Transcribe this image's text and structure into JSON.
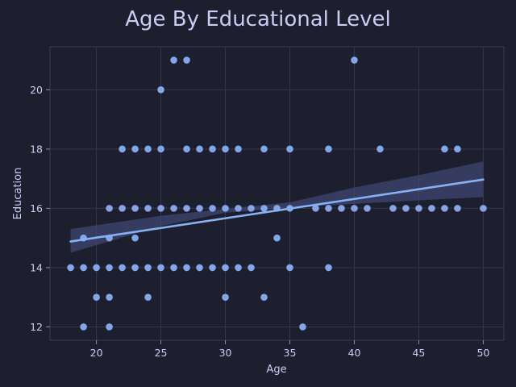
{
  "chart_data": {
    "type": "scatter",
    "title": "Age By Educational Level",
    "xlabel": "Age",
    "ylabel": "Education",
    "xlim": [
      16.4,
      51.6
    ],
    "ylim": [
      11.55,
      21.45
    ],
    "xticks": [
      20,
      25,
      30,
      35,
      40,
      45,
      50
    ],
    "yticks": [
      12,
      14,
      16,
      18,
      20
    ],
    "grid": true,
    "colors": {
      "background": "#1e1f2e",
      "points": "#86a5e8",
      "regression_line": "#86b1f5",
      "confidence_band": "#3d4770"
    },
    "points": [
      [
        18,
        14
      ],
      [
        19,
        12
      ],
      [
        19,
        14
      ],
      [
        19,
        15
      ],
      [
        20,
        13
      ],
      [
        20,
        14
      ],
      [
        21,
        12
      ],
      [
        21,
        13
      ],
      [
        21,
        14
      ],
      [
        21,
        15
      ],
      [
        21,
        16
      ],
      [
        22,
        14
      ],
      [
        22,
        16
      ],
      [
        22,
        18
      ],
      [
        23,
        14
      ],
      [
        23,
        15
      ],
      [
        23,
        16
      ],
      [
        23,
        18
      ],
      [
        24,
        13
      ],
      [
        24,
        14
      ],
      [
        24,
        16
      ],
      [
        24,
        18
      ],
      [
        25,
        14
      ],
      [
        25,
        16
      ],
      [
        25,
        18
      ],
      [
        25,
        20
      ],
      [
        26,
        14
      ],
      [
        26,
        16
      ],
      [
        26,
        21
      ],
      [
        27,
        14
      ],
      [
        27,
        16
      ],
      [
        27,
        18
      ],
      [
        27,
        21
      ],
      [
        28,
        14
      ],
      [
        28,
        16
      ],
      [
        28,
        18
      ],
      [
        29,
        14
      ],
      [
        29,
        16
      ],
      [
        29,
        18
      ],
      [
        30,
        13
      ],
      [
        30,
        14
      ],
      [
        30,
        16
      ],
      [
        30,
        18
      ],
      [
        31,
        14
      ],
      [
        31,
        16
      ],
      [
        31,
        18
      ],
      [
        32,
        14
      ],
      [
        32,
        16
      ],
      [
        33,
        13
      ],
      [
        33,
        16
      ],
      [
        33,
        18
      ],
      [
        34,
        15
      ],
      [
        34,
        16
      ],
      [
        35,
        14
      ],
      [
        35,
        16
      ],
      [
        35,
        18
      ],
      [
        36,
        12
      ],
      [
        37,
        16
      ],
      [
        38,
        14
      ],
      [
        38,
        16
      ],
      [
        38,
        18
      ],
      [
        39,
        16
      ],
      [
        40,
        16
      ],
      [
        40,
        21
      ],
      [
        41,
        16
      ],
      [
        42,
        18
      ],
      [
        43,
        16
      ],
      [
        44,
        16
      ],
      [
        45,
        16
      ],
      [
        46,
        16
      ],
      [
        47,
        16
      ],
      [
        47,
        18
      ],
      [
        48,
        16
      ],
      [
        48,
        18
      ],
      [
        50,
        16
      ]
    ],
    "regression": {
      "x_range": [
        18,
        50
      ],
      "line": [
        [
          18,
          14.88
        ],
        [
          50,
          16.97
        ]
      ],
      "ci_lower": [
        [
          18,
          14.5
        ],
        [
          25,
          15.4
        ],
        [
          30,
          15.85
        ],
        [
          35,
          16.02
        ],
        [
          40,
          16.15
        ],
        [
          45,
          16.27
        ],
        [
          50,
          16.38
        ]
      ],
      "ci_upper": [
        [
          18,
          15.3
        ],
        [
          25,
          15.75
        ],
        [
          30,
          15.98
        ],
        [
          35,
          16.2
        ],
        [
          40,
          16.7
        ],
        [
          45,
          17.12
        ],
        [
          50,
          17.58
        ]
      ]
    }
  }
}
